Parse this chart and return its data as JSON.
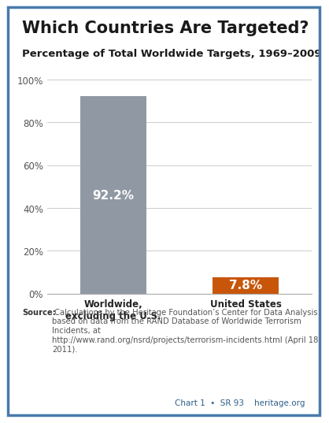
{
  "title": "Which Countries Are Targeted?",
  "subtitle": "Percentage of Total Worldwide Targets, 1969–2009",
  "categories": [
    "Worldwide,\nexcluding the U.S.",
    "United States"
  ],
  "values": [
    92.2,
    7.8
  ],
  "labels": [
    "92.2%",
    "7.8%"
  ],
  "bar_colors": [
    "#9099a3",
    "#c8560a"
  ],
  "ylim": [
    0,
    100
  ],
  "yticks": [
    0,
    20,
    40,
    60,
    80,
    100
  ],
  "ytick_labels": [
    "0%",
    "20%",
    "40%",
    "60%",
    "80%",
    "100%"
  ],
  "background_color": "#ffffff",
  "title_fontsize": 15,
  "subtitle_fontsize": 9.5,
  "label_fontsize": 11,
  "tick_fontsize": 8.5,
  "xtick_fontsize": 8.5,
  "source_bold": "Source:",
  "source_text": " Calculations by the Heritage Foundation’s Center for Data Analysis based on data from the RAND Database of Worldwide Terrorism Incidents, at ",
  "source_italic": "http://www.rand.org/nsrd/projects/terrorism-incidents.html",
  "source_end": " (April 18, 2011).",
  "footer_text": "Chart 1  •  SR 93    heritage.org",
  "footer_color": "#2e5f8a",
  "grid_color": "#cccccc",
  "border_color": "#aaaaaa",
  "source_fontsize": 7.2,
  "footer_fontsize": 7.5,
  "outer_border_color": "#4a7aad"
}
